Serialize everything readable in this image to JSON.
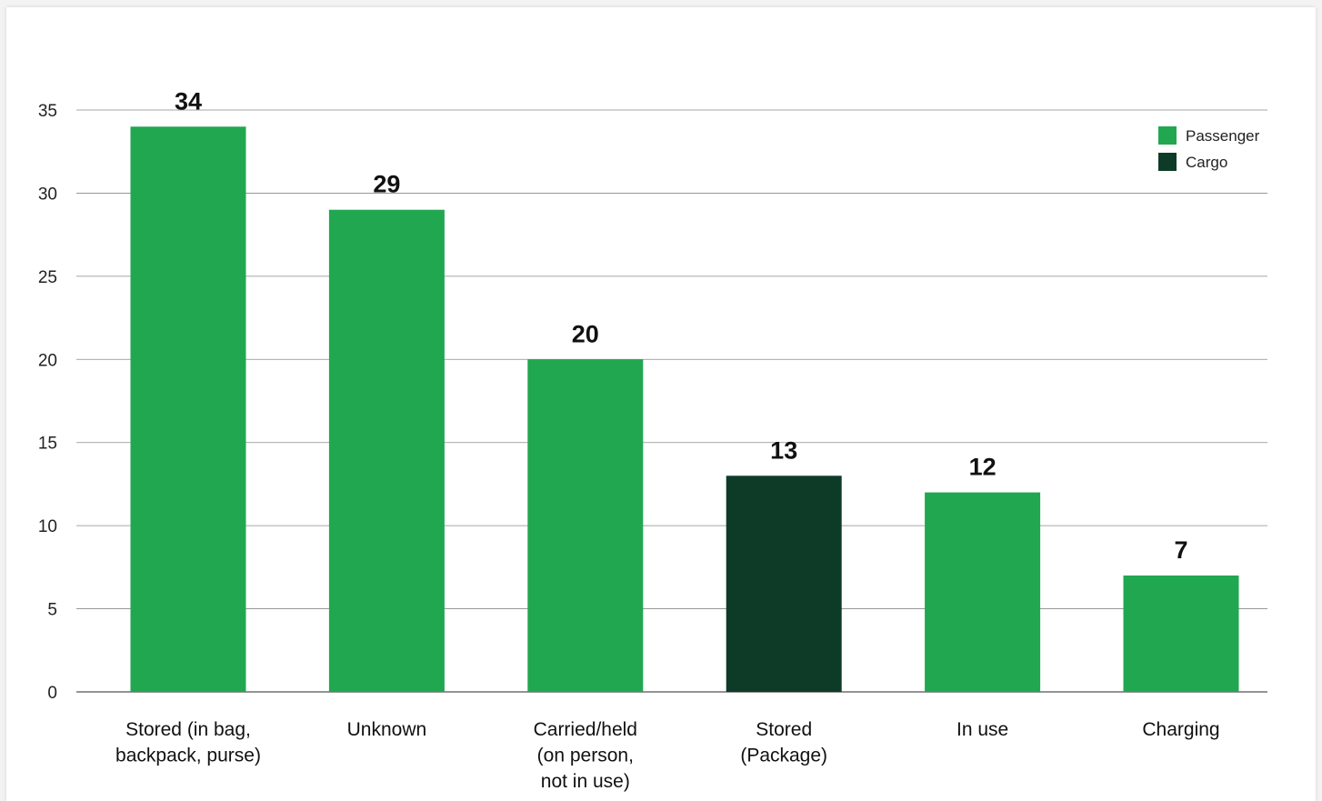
{
  "colors": {
    "passenger": "#22a751",
    "cargo": "#0d3b28",
    "grid": "#8a8a8a",
    "baseline": "#555555"
  },
  "legend": {
    "items": [
      {
        "label": "Passenger",
        "color": "#22a751"
      },
      {
        "label": "Cargo",
        "color": "#0d3b28"
      }
    ]
  },
  "chart_data": {
    "type": "bar",
    "title": "",
    "xlabel": "",
    "ylabel": "",
    "ylim": [
      0,
      35
    ],
    "yticks": [
      0,
      5,
      10,
      15,
      20,
      25,
      30,
      35
    ],
    "grid": true,
    "legend_position": "top-right",
    "categories": [
      [
        "Stored (in bag,",
        "backpack, purse)"
      ],
      [
        "Unknown"
      ],
      [
        "Carried/held",
        "(on person,",
        "not in use)"
      ],
      [
        "Stored",
        "(Package)"
      ],
      [
        "In use"
      ],
      [
        "Charging"
      ]
    ],
    "values": [
      34,
      29,
      20,
      13,
      12,
      7
    ],
    "series_of_bar": [
      "Passenger",
      "Passenger",
      "Passenger",
      "Cargo",
      "Passenger",
      "Passenger"
    ],
    "series": [
      {
        "name": "Passenger"
      },
      {
        "name": "Cargo"
      }
    ]
  }
}
